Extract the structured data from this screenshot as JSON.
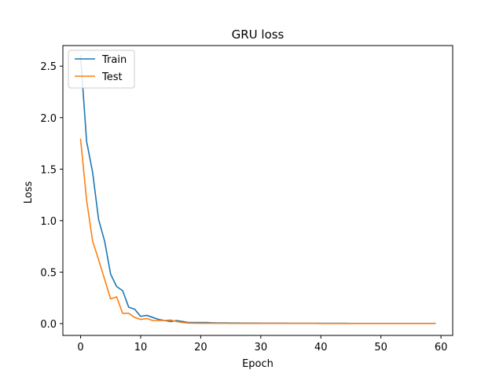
{
  "chart_data": {
    "type": "line",
    "title": "GRU loss",
    "xlabel": "Epoch",
    "ylabel": "Loss",
    "xlim": [
      -2.95,
      61.95
    ],
    "ylim": [
      -0.115,
      2.7
    ],
    "xticks": [
      0,
      10,
      20,
      30,
      40,
      50,
      60
    ],
    "yticks": [
      0.0,
      0.5,
      1.0,
      1.5,
      2.0,
      2.5
    ],
    "ytick_labels": [
      "0.0",
      "0.5",
      "1.0",
      "1.5",
      "2.0",
      "2.5"
    ],
    "grid": false,
    "legend_position": "upper-left",
    "x": [
      0,
      1,
      2,
      3,
      4,
      5,
      6,
      7,
      8,
      9,
      10,
      11,
      12,
      13,
      14,
      15,
      16,
      17,
      18,
      19,
      20,
      21,
      22,
      23,
      24,
      25,
      26,
      27,
      28,
      29,
      30,
      31,
      32,
      33,
      34,
      35,
      36,
      37,
      38,
      39,
      40,
      41,
      42,
      43,
      44,
      45,
      46,
      47,
      48,
      49,
      50,
      51,
      52,
      53,
      54,
      55,
      56,
      57,
      58,
      59
    ],
    "series": [
      {
        "name": "Train",
        "color": "#1f77b4",
        "values": [
          2.6,
          1.77,
          1.47,
          1.01,
          0.8,
          0.48,
          0.36,
          0.32,
          0.16,
          0.14,
          0.07,
          0.08,
          0.06,
          0.04,
          0.03,
          0.02,
          0.03,
          0.02,
          0.01,
          0.01,
          0.01,
          0.01,
          0.008,
          0.007,
          0.007,
          0.006,
          0.006,
          0.005,
          0.005,
          0.005,
          0.004,
          0.004,
          0.004,
          0.004,
          0.004,
          0.003,
          0.003,
          0.003,
          0.003,
          0.003,
          0.003,
          0.003,
          0.003,
          0.003,
          0.003,
          0.002,
          0.002,
          0.002,
          0.002,
          0.002,
          0.002,
          0.002,
          0.002,
          0.002,
          0.002,
          0.002,
          0.002,
          0.002,
          0.002,
          0.002
        ]
      },
      {
        "name": "Test",
        "color": "#ff7f0e",
        "values": [
          1.79,
          1.2,
          0.8,
          0.62,
          0.43,
          0.24,
          0.26,
          0.1,
          0.1,
          0.06,
          0.04,
          0.05,
          0.03,
          0.03,
          0.03,
          0.035,
          0.02,
          0.01,
          0.005,
          0.004,
          0.003,
          0.003,
          0.003,
          0.003,
          0.003,
          0.002,
          0.002,
          0.002,
          0.002,
          0.002,
          0.002,
          0.002,
          0.002,
          0.002,
          0.002,
          0.002,
          0.002,
          0.002,
          0.002,
          0.002,
          0.001,
          0.001,
          0.001,
          0.001,
          0.001,
          0.001,
          0.001,
          0.001,
          0.001,
          0.001,
          0.001,
          0.001,
          0.001,
          0.001,
          0.001,
          0.001,
          0.001,
          0.001,
          0.001,
          0.001
        ]
      }
    ]
  }
}
